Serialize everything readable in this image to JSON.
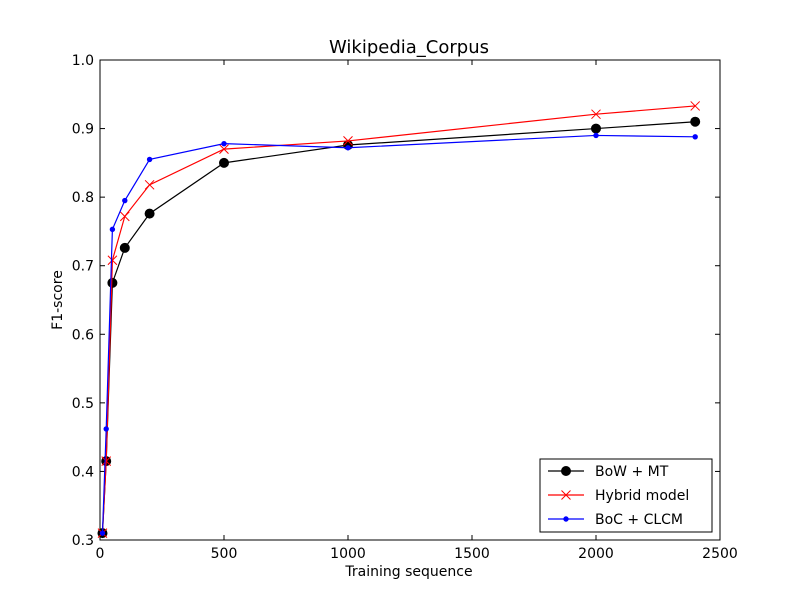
{
  "chart_data": {
    "type": "line",
    "title": "Wikipedia_Corpus",
    "xlabel": "Training sequence",
    "ylabel": "F1-score",
    "xlim": [
      0,
      2500
    ],
    "ylim": [
      0.3,
      1.0
    ],
    "x_ticks": [
      0,
      500,
      1000,
      1500,
      2000,
      2500
    ],
    "y_ticks": [
      0.3,
      0.4,
      0.5,
      0.6,
      0.7,
      0.8,
      0.9,
      1.0
    ],
    "x_tick_labels": [
      "0",
      "500",
      "1000",
      "1500",
      "2000",
      "2500"
    ],
    "y_tick_labels": [
      "0.3",
      "0.4",
      "0.5",
      "0.6",
      "0.7",
      "0.8",
      "0.9",
      "1.0"
    ],
    "grid": false,
    "legend_position": "lower-right",
    "series": [
      {
        "name": "BoW + MT",
        "color": "#000000",
        "marker": "circle",
        "x": [
          10,
          25,
          50,
          100,
          200,
          500,
          1000,
          2000,
          2400
        ],
        "y": [
          0.31,
          0.415,
          0.675,
          0.726,
          0.776,
          0.85,
          0.876,
          0.9,
          0.91
        ]
      },
      {
        "name": "Hybrid model",
        "color": "#ff0000",
        "marker": "x",
        "x": [
          10,
          25,
          50,
          100,
          200,
          500,
          1000,
          2000,
          2400
        ],
        "y": [
          0.31,
          0.415,
          0.708,
          0.772,
          0.818,
          0.87,
          0.882,
          0.921,
          0.933
        ]
      },
      {
        "name": "BoC + CLCM",
        "color": "#0000ff",
        "marker": "dot",
        "x": [
          10,
          25,
          50,
          100,
          200,
          500,
          1000,
          2000,
          2400
        ],
        "y": [
          0.31,
          0.462,
          0.753,
          0.795,
          0.855,
          0.878,
          0.872,
          0.89,
          0.888
        ]
      }
    ]
  }
}
